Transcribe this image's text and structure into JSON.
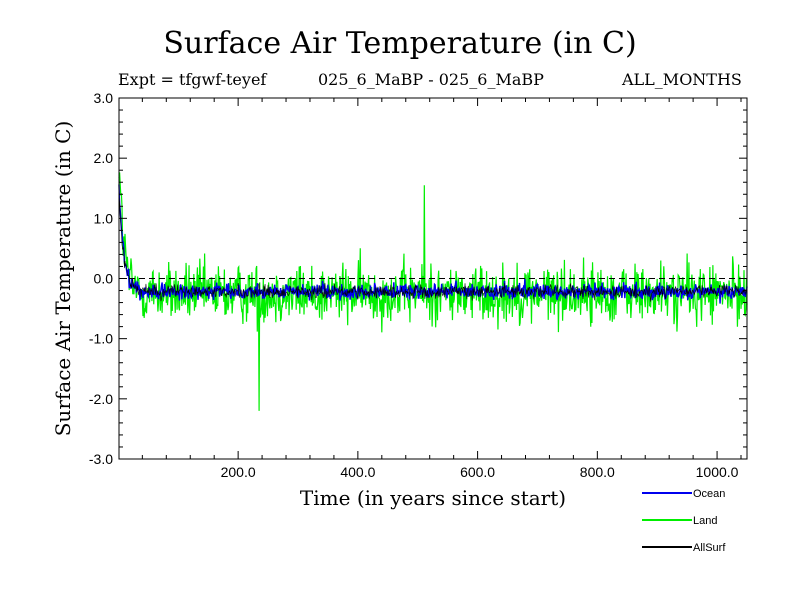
{
  "chart_data": {
    "type": "line",
    "title": "Surface Air Temperature (in C)",
    "expt_label": "Expt = tfgwf-teyef",
    "comparison_label": "025_6_MaBP - 025_6_MaBP",
    "months_label": "ALL_MONTHS",
    "xlabel": "Time (in years since start)",
    "ylabel": "Surface Air Temperature (in C)",
    "xlim": [
      1,
      1050
    ],
    "ylim": [
      -3.0,
      3.0
    ],
    "x_ticks": [
      200,
      400,
      600,
      800,
      1000
    ],
    "x_tick_labels": [
      "200.0",
      "400.0",
      "600.0",
      "800.0",
      "1000.0"
    ],
    "y_ticks": [
      3,
      2,
      1,
      0,
      -1,
      -2,
      -3
    ],
    "y_tick_labels": [
      "3.0",
      "2.0",
      "1.0",
      "0.0",
      "-1.0",
      "-2.0",
      "-3.0"
    ],
    "zero_line": 0.0,
    "series": [
      {
        "name": "Land",
        "color": "#00ee00",
        "start": 2.0,
        "equilibrium": -0.25,
        "relax_years": 8,
        "noise_amplitude": 0.45,
        "spike_peak_max": 1.55,
        "spike_peak_min": -2.2
      },
      {
        "name": "Ocean",
        "color": "#0000ee",
        "start": 1.5,
        "equilibrium": -0.22,
        "relax_years": 8,
        "noise_amplitude": 0.12
      },
      {
        "name": "AllSurf",
        "color": "#000000",
        "start": 1.4,
        "equilibrium": -0.22,
        "relax_years": 8,
        "noise_amplitude": 0.1
      }
    ]
  }
}
